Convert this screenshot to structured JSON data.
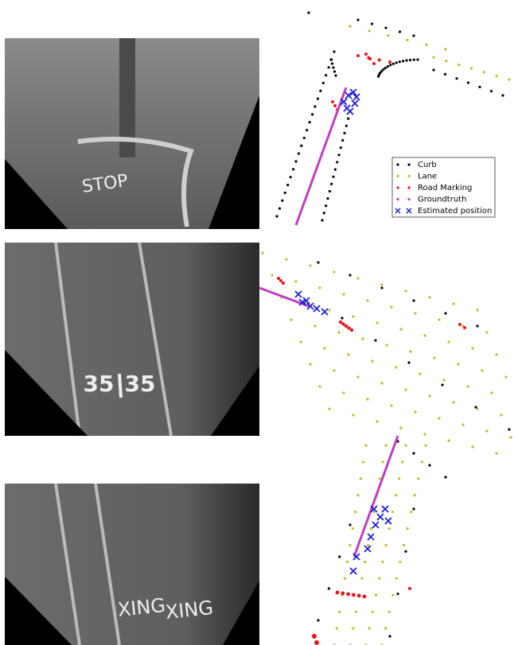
{
  "photos": [
    {
      "road_text": [
        "STOP"
      ]
    },
    {
      "road_text": [
        "35",
        "35"
      ]
    },
    {
      "road_text": [
        "XING",
        "XING"
      ]
    }
  ],
  "legend": [
    {
      "label": "Curb",
      "color": "#000000"
    },
    {
      "label": "Lane",
      "color": "#bcbd22"
    },
    {
      "label": "Road Marking",
      "color": "#e8151b"
    },
    {
      "label": "Groundtruth",
      "color": "#bf3fbf"
    },
    {
      "label": "Estimated position",
      "color": "#1f1fd6"
    }
  ]
}
